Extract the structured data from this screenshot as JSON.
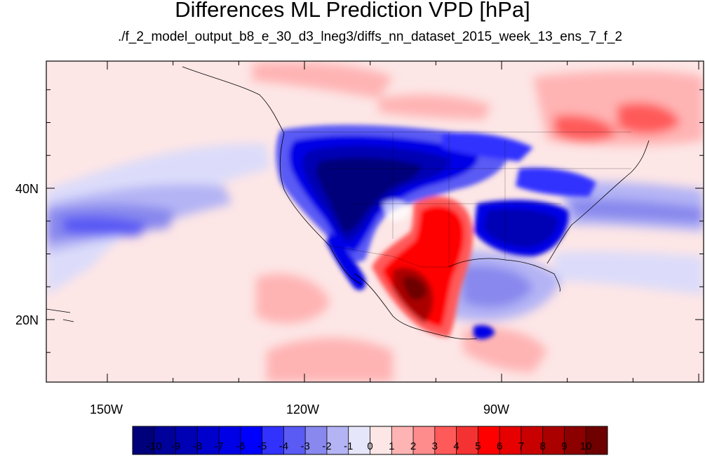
{
  "title": "Differences ML Prediction VPD [hPa]",
  "subtitle": "./f_2_model_output_b8_e_30_d3_lneg3/diffs_nn_dataset_2015_week_13_ens_7_f_2",
  "axes": {
    "lon_labels": [
      "150W",
      "120W",
      "90W"
    ],
    "lat_labels": [
      "40N",
      "20N"
    ]
  },
  "colorbar": {
    "labels": [
      "-10",
      "-9",
      "-8",
      "-7",
      "-6",
      "-5",
      "-4",
      "-3",
      "-2",
      "-1",
      "0",
      "1",
      "2",
      "3",
      "4",
      "5",
      "6",
      "7",
      "8",
      "9",
      "10"
    ],
    "colors": [
      "#00007a",
      "#00009a",
      "#0000b4",
      "#0000cc",
      "#0000e6",
      "#0000ff",
      "#3232ff",
      "#5a5af5",
      "#8888ee",
      "#b4b4f5",
      "#e6e6fa",
      "#fde6e6",
      "#ffb4b4",
      "#ff8c8c",
      "#ff5a5a",
      "#f53232",
      "#ff0000",
      "#e60000",
      "#c80000",
      "#aa0000",
      "#8c0000",
      "#6e0000"
    ]
  },
  "map_colors": {
    "ocean_neg": "#dcdcfa",
    "ocean_pos": "#fde6e6",
    "deep_blue": "#00009a",
    "mid_blue": "#3232ff",
    "light_blue": "#8888ee",
    "deep_red": "#8c0000",
    "mid_red": "#e60000",
    "light_red": "#ff8c8c"
  }
}
